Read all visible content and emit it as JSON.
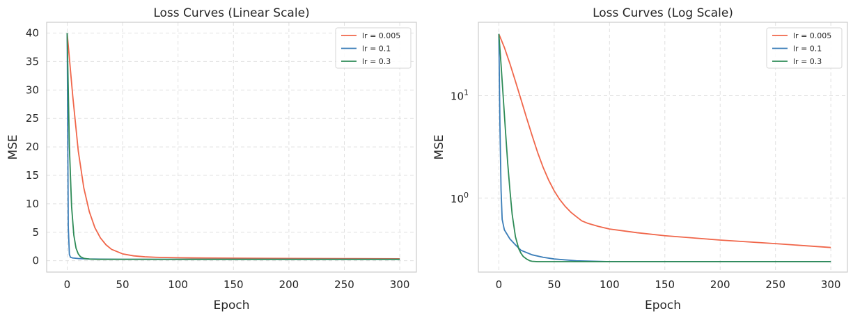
{
  "colors": {
    "lr_0005": "#f0664a",
    "lr_01": "#3a7db8",
    "lr_03": "#2e8b57",
    "grid": "#e0e0e0",
    "frame": "#cccccc"
  },
  "chart_data": [
    {
      "type": "line",
      "title": "Loss Curves (Linear Scale)",
      "xlabel": "Epoch",
      "ylabel": "MSE",
      "xlim": [
        -18.5,
        315
      ],
      "ylim": [
        -2.0,
        41.9
      ],
      "yscale": "linear",
      "xticks": [
        0,
        50,
        100,
        150,
        200,
        250,
        300
      ],
      "xtick_labels": [
        "0",
        "50",
        "100",
        "150",
        "200",
        "250",
        "300"
      ],
      "yticks": [
        0,
        5,
        10,
        15,
        20,
        25,
        30,
        35,
        40
      ],
      "ytick_labels": [
        "0",
        "5",
        "10",
        "15",
        "20",
        "25",
        "30",
        "35",
        "40"
      ],
      "grid": true,
      "legend": "top-right",
      "series": [
        {
          "name": "lr = 0.005",
          "color": "#f0664a",
          "x": [
            0,
            5,
            10,
            15,
            20,
            25,
            30,
            35,
            40,
            50,
            60,
            70,
            80,
            90,
            100,
            125,
            150,
            200,
            250,
            300
          ],
          "y": [
            40,
            29,
            19.3,
            12.8,
            8.6,
            5.8,
            4.0,
            2.8,
            2.0,
            1.2,
            0.85,
            0.68,
            0.6,
            0.55,
            0.52,
            0.47,
            0.44,
            0.4,
            0.37,
            0.34
          ]
        },
        {
          "name": "lr = 0.1",
          "color": "#3a7db8",
          "x": [
            0,
            1,
            2,
            3,
            5,
            10,
            20,
            30,
            50,
            100,
            300
          ],
          "y": [
            40,
            6,
            1.1,
            0.6,
            0.48,
            0.38,
            0.3,
            0.27,
            0.25,
            0.24,
            0.24
          ]
        },
        {
          "name": "lr = 0.3",
          "color": "#2e8b57",
          "x": [
            0,
            2,
            4,
            6,
            8,
            10,
            12,
            15,
            20,
            25,
            30,
            40,
            300
          ],
          "y": [
            40,
            20,
            9.5,
            4.5,
            2.2,
            1.2,
            0.7,
            0.42,
            0.29,
            0.25,
            0.24,
            0.24,
            0.24
          ]
        }
      ]
    },
    {
      "type": "line",
      "title": "Loss Curves (Log Scale)",
      "xlabel": "Epoch",
      "ylabel": "MSE",
      "xlim": [
        -18.5,
        315
      ],
      "ylim": [
        0.19,
        52
      ],
      "yscale": "log",
      "xticks": [
        0,
        50,
        100,
        150,
        200,
        250,
        300
      ],
      "xtick_labels": [
        "0",
        "50",
        "100",
        "150",
        "200",
        "250",
        "300"
      ],
      "yticks": [
        1,
        10
      ],
      "ytick_labels": [
        {
          "base": "10",
          "exp": "0"
        },
        {
          "base": "10",
          "exp": "1"
        }
      ],
      "grid": true,
      "legend": "top-right",
      "series": [
        {
          "name": "lr = 0.005",
          "color": "#f0664a",
          "x": [
            0,
            5,
            10,
            15,
            20,
            25,
            30,
            35,
            40,
            45,
            50,
            55,
            60,
            65,
            70,
            75,
            80,
            90,
            100,
            125,
            150,
            200,
            250,
            300
          ],
          "y": [
            40,
            29.5,
            20.5,
            13.8,
            9.2,
            6.1,
            4.1,
            2.8,
            2.0,
            1.5,
            1.18,
            0.97,
            0.83,
            0.73,
            0.66,
            0.6,
            0.57,
            0.53,
            0.5,
            0.46,
            0.43,
            0.39,
            0.36,
            0.33
          ]
        },
        {
          "name": "lr = 0.1",
          "color": "#3a7db8",
          "x": [
            0,
            1,
            2,
            3,
            5,
            10,
            15,
            20,
            30,
            40,
            50,
            70,
            100,
            150,
            300
          ],
          "y": [
            40,
            5,
            1.2,
            0.62,
            0.49,
            0.4,
            0.35,
            0.31,
            0.28,
            0.265,
            0.255,
            0.245,
            0.24,
            0.24,
            0.24
          ]
        },
        {
          "name": "lr = 0.3",
          "color": "#2e8b57",
          "x": [
            0,
            2,
            4,
            6,
            8,
            10,
            12,
            15,
            18,
            20,
            22,
            25,
            28,
            30,
            35,
            40,
            60,
            300
          ],
          "y": [
            40,
            20,
            9.5,
            4.5,
            2.2,
            1.2,
            0.7,
            0.42,
            0.32,
            0.29,
            0.27,
            0.255,
            0.245,
            0.242,
            0.24,
            0.24,
            0.24,
            0.24
          ]
        }
      ]
    }
  ]
}
